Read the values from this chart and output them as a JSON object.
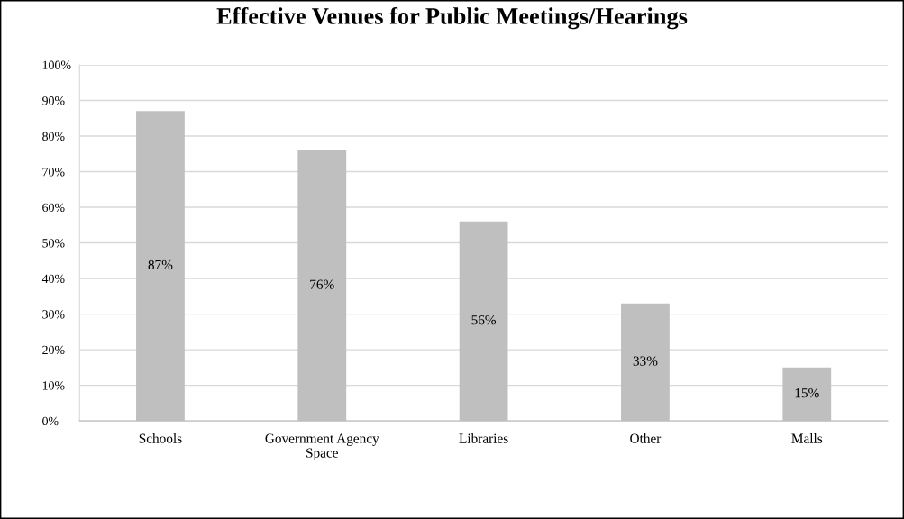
{
  "chart_data": {
    "type": "bar",
    "title": "Effective Venues for Public Meetings/Hearings",
    "categories": [
      "Schools",
      "Government Agency Space",
      "Libraries",
      "Other",
      "Malls"
    ],
    "values": [
      87,
      76,
      56,
      33,
      15
    ],
    "value_labels": [
      "87%",
      "76%",
      "56%",
      "33%",
      "15%"
    ],
    "color": "#bfbfbf",
    "ylim": [
      0,
      100
    ],
    "yticks": [
      {
        "value": 0,
        "label": "0%"
      },
      {
        "value": 10,
        "label": "10%"
      },
      {
        "value": 20,
        "label": "20%"
      },
      {
        "value": 30,
        "label": "30%"
      },
      {
        "value": 40,
        "label": "40%"
      },
      {
        "value": 50,
        "label": "50%"
      },
      {
        "value": 60,
        "label": "60%"
      },
      {
        "value": 70,
        "label": "70%"
      },
      {
        "value": 80,
        "label": "80%"
      },
      {
        "value": 90,
        "label": "90%"
      },
      {
        "value": 100,
        "label": "100%"
      }
    ],
    "grid": "y",
    "legend": false
  }
}
